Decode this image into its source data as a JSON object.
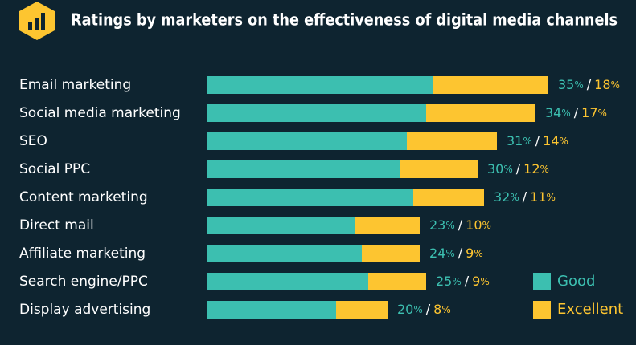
{
  "chart_data": {
    "type": "stacked-bar",
    "title": "Ratings by marketers on the effectiveness of digital media channels",
    "categories": [
      "Email marketing",
      "Social media marketing",
      "SEO",
      "Social PPC",
      "Content marketing",
      "Direct mail",
      "Affiliate marketing",
      "Search engine/PPC",
      "Display advertising"
    ],
    "series": [
      {
        "name": "Good",
        "color": "#3cbfb0",
        "values": [
          35,
          34,
          31,
          30,
          32,
          23,
          24,
          25,
          20
        ],
        "value_labels": [
          "35%",
          "34%",
          "31%",
          "30%",
          "32%",
          "23%",
          "24%",
          "25%",
          "20%"
        ]
      },
      {
        "name": "Excellent",
        "color": "#fdc530",
        "values": [
          18,
          17,
          14,
          12,
          11,
          10,
          9,
          9,
          8
        ],
        "value_labels": [
          "18%",
          "17%",
          "14%",
          "12%",
          "11%",
          "10%",
          "9%",
          "9%",
          "8%"
        ]
      }
    ],
    "label_separator": "/",
    "legend": "bottom-right"
  }
}
